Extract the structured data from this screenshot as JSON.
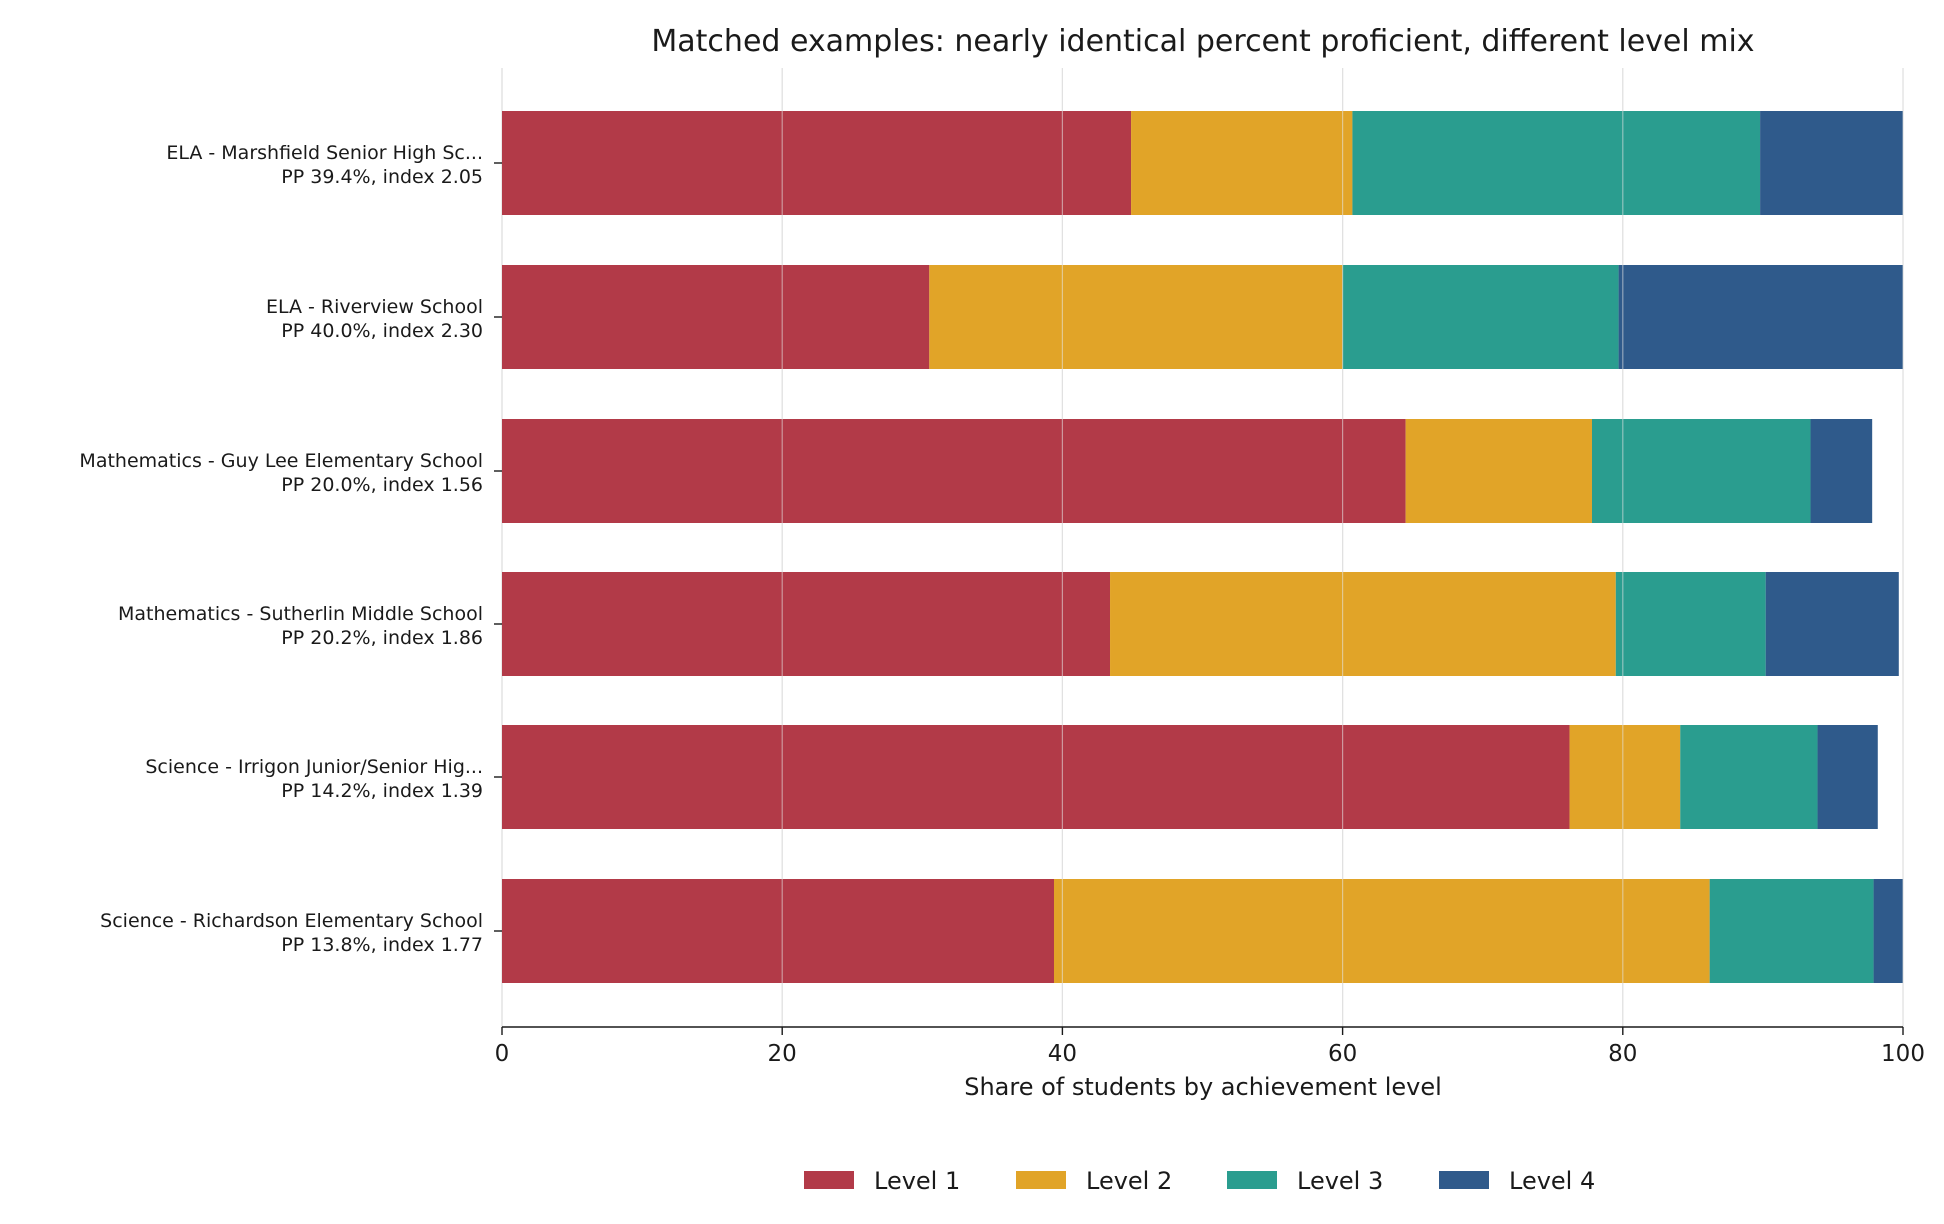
{
  "chart_data": {
    "type": "bar",
    "orientation": "horizontal",
    "stacked": true,
    "title": "Matched examples: nearly identical percent proficient, different level mix",
    "xlabel": "Share of students by achievement level",
    "ylabel": "",
    "xlim": [
      0,
      100
    ],
    "xticks": [
      "0",
      "20",
      "40",
      "60",
      "80",
      "100"
    ],
    "grid": "vertical",
    "legend": "bottom-center",
    "categories": [
      {
        "line1": "ELA - Marshfield Senior High Sc...",
        "line2": "PP 39.4%, index 2.05"
      },
      {
        "line1": "ELA - Riverview School",
        "line2": "PP 40.0%, index 2.30"
      },
      {
        "line1": "Mathematics - Guy Lee Elementary School",
        "line2": "PP 20.0%, index 1.56"
      },
      {
        "line1": "Mathematics - Sutherlin Middle School",
        "line2": "PP 20.2%, index 1.86"
      },
      {
        "line1": "Science - Irrigon Junior/Senior Hig...",
        "line2": "PP 14.2%, index 1.39"
      },
      {
        "line1": "Science - Richardson Elementary School",
        "line2": "PP 13.8%, index 1.77"
      }
    ],
    "series": [
      {
        "name": "Level 1",
        "color": "#b23a48",
        "values": [
          44.9,
          30.5,
          64.5,
          43.4,
          76.2,
          39.4
        ]
      },
      {
        "name": "Level 2",
        "color": "#e1a428",
        "values": [
          15.8,
          29.5,
          13.3,
          36.1,
          7.9,
          46.8
        ]
      },
      {
        "name": "Level 3",
        "color": "#2a9d8f",
        "values": [
          29.1,
          19.7,
          15.6,
          10.7,
          9.8,
          11.7
        ]
      },
      {
        "name": "Level 4",
        "color": "#2f5a8b",
        "values": [
          10.2,
          20.3,
          4.4,
          9.5,
          4.3,
          2.1
        ]
      }
    ]
  }
}
